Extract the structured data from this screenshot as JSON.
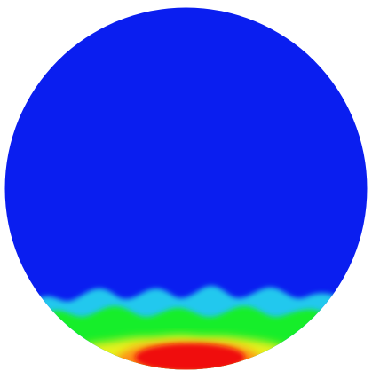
{
  "figure": {
    "kind": "circular contour plot",
    "colormap": {
      "name": "jet",
      "low": "#0a1ef0",
      "cyan": "#22c8ee",
      "green": "#12ee2a",
      "yellow": "#e8f21a",
      "orange": "#ff8a12",
      "high": "#f00a0a"
    }
  }
}
